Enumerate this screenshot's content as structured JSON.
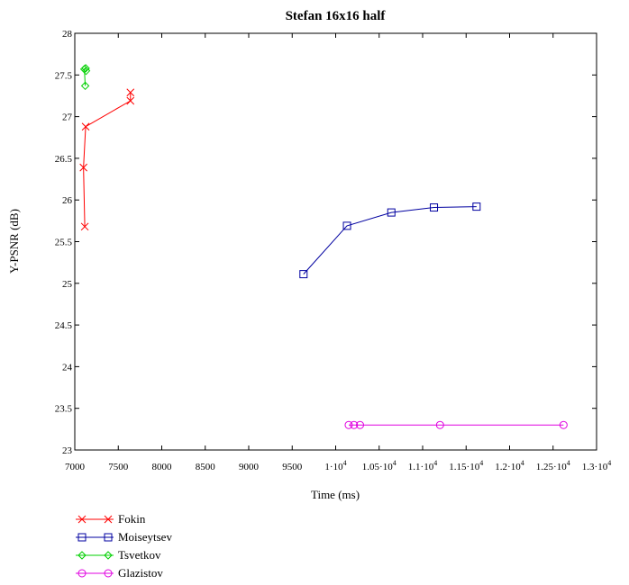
{
  "chart_data": {
    "type": "line",
    "title": "Stefan 16x16 half",
    "xlabel": "Time (ms)",
    "ylabel": "Y-PSNR (dB)",
    "xlim": [
      7000,
      13000
    ],
    "ylim": [
      23,
      28
    ],
    "x_ticks": [
      7000,
      7500,
      8000,
      8500,
      9000,
      9500,
      10000,
      10500,
      11000,
      11500,
      12000,
      12500,
      13000
    ],
    "x_tick_labels": [
      {
        "text": "7000",
        "exp": ""
      },
      {
        "text": "7500",
        "exp": ""
      },
      {
        "text": "8000",
        "exp": ""
      },
      {
        "text": "8500",
        "exp": ""
      },
      {
        "text": "9000",
        "exp": ""
      },
      {
        "text": "9500",
        "exp": ""
      },
      {
        "text": "1·10",
        "exp": "4"
      },
      {
        "text": "1.05·10",
        "exp": "4"
      },
      {
        "text": "1.1·10",
        "exp": "4"
      },
      {
        "text": "1.15·10",
        "exp": "4"
      },
      {
        "text": "1.2·10",
        "exp": "4"
      },
      {
        "text": "1.25·10",
        "exp": "4"
      },
      {
        "text": "1.3·10",
        "exp": "4"
      }
    ],
    "y_ticks": [
      23,
      23.5,
      24,
      24.5,
      25,
      25.5,
      26,
      26.5,
      27,
      27.5,
      28
    ],
    "y_tick_labels": [
      "23",
      "23.5",
      "24",
      "24.5",
      "25",
      "25.5",
      "26",
      "26.5",
      "27",
      "27.5",
      "28"
    ],
    "grid": false,
    "legend_position": "bottom-left",
    "series": [
      {
        "name": "Fokin",
        "color": "#ff0000",
        "marker": "x",
        "points": [
          [
            7115,
            25.68
          ],
          [
            7100,
            26.39
          ],
          [
            7125,
            26.88
          ],
          [
            7640,
            27.19
          ],
          [
            7640,
            27.29
          ]
        ]
      },
      {
        "name": "Moiseytsev",
        "color": "#0000a0",
        "marker": "square",
        "points": [
          [
            9630,
            25.11
          ],
          [
            10130,
            25.69
          ],
          [
            10640,
            25.85
          ],
          [
            11130,
            25.91
          ],
          [
            11620,
            25.92
          ]
        ]
      },
      {
        "name": "Tsvetkov",
        "color": "#00d000",
        "marker": "diamond",
        "points": [
          [
            7120,
            27.37
          ],
          [
            7110,
            27.57
          ],
          [
            7125,
            27.58
          ],
          [
            7130,
            27.55
          ]
        ]
      },
      {
        "name": "Glazistov",
        "color": "#e000e0",
        "marker": "circle",
        "points": [
          [
            10150,
            23.3
          ],
          [
            10210,
            23.3
          ],
          [
            10280,
            23.3
          ],
          [
            11200,
            23.3
          ],
          [
            12620,
            23.3
          ]
        ]
      }
    ]
  }
}
